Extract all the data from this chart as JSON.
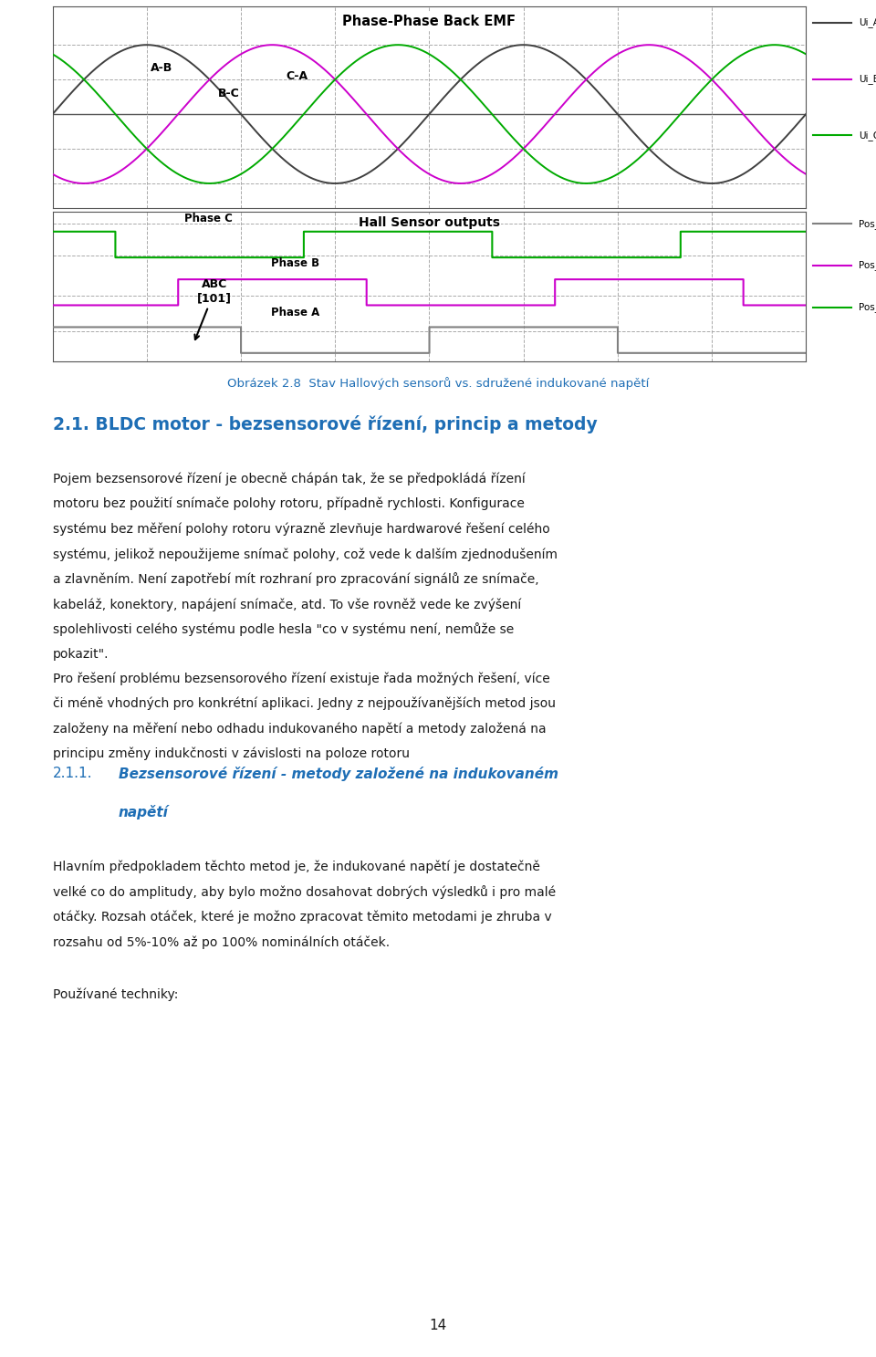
{
  "page_width": 9.6,
  "page_height": 14.87,
  "bg_color": "#ffffff",
  "top_plot_title": "Phase-Phase Back EMF",
  "top_plot_legend": [
    "Ui_AB",
    "Ui_BC",
    "Ui_CA"
  ],
  "top_plot_colors": [
    "#404040",
    "#cc00cc",
    "#00aa00"
  ],
  "top_plot_labels": [
    "A-B",
    "B-C",
    "C-A"
  ],
  "bottom_plot_title": "Hall Sensor outputs",
  "bottom_plot_legend": [
    "Pos_A",
    "Pos_B",
    "Pos_C"
  ],
  "bottom_plot_colors": [
    "#808080",
    "#cc00cc",
    "#00aa00"
  ],
  "fig_caption": "Obrázek 2.8  Stav Hallových sensorů vs. sdružené indukované napětí",
  "section_title": "2.1. BLDC motor - bezsensorové řízení, princip a metody",
  "subsection_num": "2.1.1.",
  "subsection_title": "Bezsensorové řízení - metody založené na indukovaném napětí",
  "para1_lines": [
    "Pojem bezsensorové řízení je obecně chápán tak, že se předpokládá řízení",
    "motoru bez použití snímače polohy rotoru, případně rychlosti. Konfigurace",
    "systému bez měření polohy rotoru výrazně zlevňuje hardwarové řešení celého",
    "systému, jelikož nepoužijeme snímač polohy, což vede k dalším zjednodušením",
    "a zlavněním. Není zapotřebí mít rozhraní pro zpracování signálů ze snímače,",
    "kabeláž, konektory, napájení snímače, atd. To vše rovněž vede ke zvýšení",
    "spolehlivosti celého systému podle hesla \"co v systému není, nemůže se",
    "pokazit\"."
  ],
  "para2_lines": [
    "Pro řešení problému bezsensorového řízení existuje řada možných řešení, více",
    "či méně vhodných pro konkrétní aplikaci. Jedny z nejpoužívanějších metod jsou",
    "založeny na měření nebo odhadu indukovaného napětí a metody založená na",
    "principu změny indukčnosti v závislosti na poloze rotoru"
  ],
  "para3_lines": [
    "Hlavním předpokladem těchto metod je, že indukované napětí je dostatečně",
    "velké co do amplitudy, aby bylo možno dosahovat dobrých výsledků i pro malé",
    "otáčky. Rozsah otáček, které je možno zpracovat těmito metodami je zhruba v",
    "rozsahu od 5%-10% až po 100% nominálních otáček."
  ],
  "para4": "Používané techniky:",
  "page_num": "14",
  "text_color": "#1a1a1a",
  "blue_color": "#1e6eb5",
  "grid_color": "#aaaaaa",
  "plot_bg": "#ffffff"
}
